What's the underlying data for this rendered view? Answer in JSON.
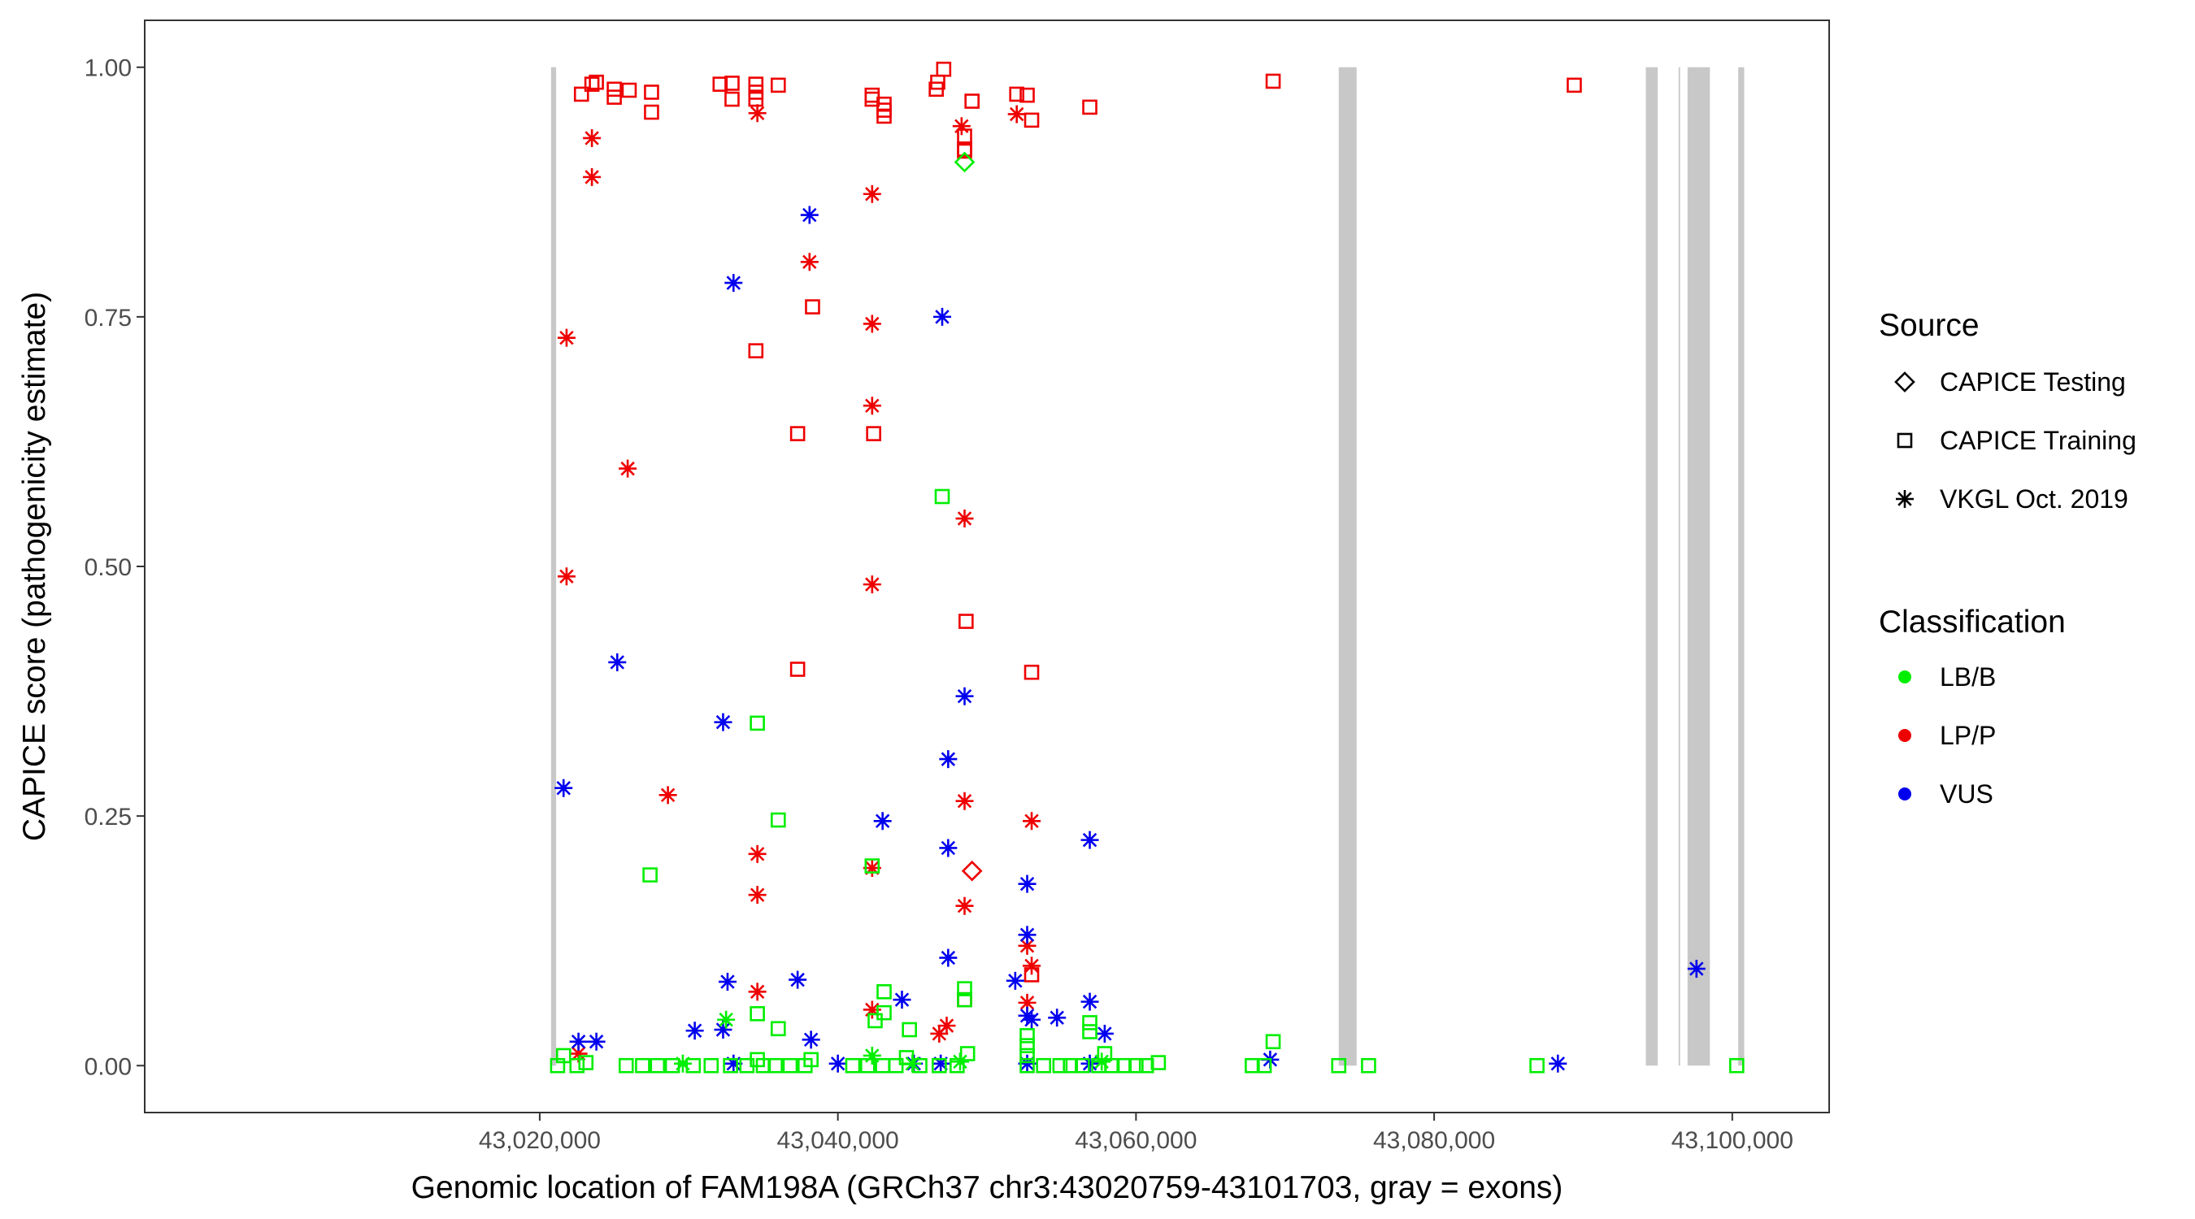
{
  "chart_data": {
    "type": "scatter",
    "title": "",
    "xlabel": "Genomic location of FAM198A (GRCh37 chr3:43020759-43101703, gray = exons)",
    "ylabel": "CAPICE score (pathogenicity estimate)",
    "xlim": [
      42993500,
      43106500
    ],
    "ylim": [
      -0.047,
      1.047
    ],
    "x_ticks": [
      43020000,
      43040000,
      43060000,
      43080000,
      43100000
    ],
    "x_tick_labels": [
      "43,020,000",
      "43,040,000",
      "43,060,000",
      "43,080,000",
      "43,100,000"
    ],
    "y_ticks": [
      0,
      0.25,
      0.5,
      0.75,
      1.0
    ],
    "y_tick_labels": [
      "0.00",
      "0.25",
      "0.50",
      "0.75",
      "1.00"
    ],
    "grid": false,
    "exons": [
      [
        43020759,
        43021100
      ],
      [
        43073600,
        43074800
      ],
      [
        43094200,
        43095000
      ],
      [
        43096400,
        43096500
      ],
      [
        43097000,
        43098500
      ],
      [
        43100400,
        43100800
      ]
    ],
    "legend_position": "right",
    "legend": {
      "source_title": "Source",
      "source_items": [
        {
          "label": "CAPICE Testing",
          "shape": "diamond"
        },
        {
          "label": "CAPICE Training",
          "shape": "square"
        },
        {
          "label": "VKGL Oct. 2019",
          "shape": "asterisk"
        }
      ],
      "class_title": "Classification",
      "class_items": [
        {
          "label": "LB/B",
          "color": "#00ee00"
        },
        {
          "label": "LP/P",
          "color": "#ee0000"
        },
        {
          "label": "VUS",
          "color": "#0000ee"
        }
      ]
    },
    "colors": {
      "LB/B": "#00ee00",
      "LP/P": "#ee0000",
      "VUS": "#0000ee",
      "exon": "#c8c8c8"
    },
    "series": [
      {
        "name": "CAPICE Training",
        "class": "LP/P",
        "shape": "square",
        "x": [
          43022800,
          43023500,
          43023800,
          43025000,
          43025000,
          43026000,
          43027500,
          43027500,
          43032100,
          43032900,
          43032900,
          43034500,
          43034500,
          43034500,
          43036000,
          43042300,
          43042300,
          43043100,
          43043100,
          43043100,
          43046600,
          43046700,
          43047100,
          43048500,
          43048500,
          43048500,
          43049000,
          43052000,
          43052700,
          43053000,
          43056900,
          43069200,
          43089400,
          43034500,
          43037300,
          43038300,
          43042400,
          43048600,
          43037300,
          43053000,
          43048500,
          43053000
        ],
        "y": [
          0.973,
          0.983,
          0.985,
          0.97,
          0.978,
          0.977,
          0.975,
          0.955,
          0.983,
          0.984,
          0.968,
          0.983,
          0.975,
          0.968,
          0.982,
          0.972,
          0.968,
          0.963,
          0.957,
          0.951,
          0.978,
          0.985,
          0.998,
          0.931,
          0.916,
          0.918,
          0.966,
          0.973,
          0.972,
          0.947,
          0.96,
          0.986,
          0.982,
          0.716,
          0.633,
          0.76,
          0.633,
          0.445,
          0.397,
          0.394,
          0.066,
          0.091
        ]
      },
      {
        "name": "VKGL Oct. 2019",
        "class": "LP/P",
        "shape": "asterisk",
        "x": [
          43023500,
          43023500,
          43021800,
          43021800,
          43025900,
          43028600,
          43034600,
          43034600,
          43034600,
          43034600,
          43038100,
          43042300,
          43042300,
          43042300,
          43042300,
          43042300,
          43042300,
          43048300,
          43048500,
          43048500,
          43048500,
          43052000,
          43052700,
          43053000,
          43053000,
          43052700,
          43046800,
          43047300,
          43022600
        ],
        "y": [
          0.929,
          0.89,
          0.729,
          0.49,
          0.598,
          0.271,
          0.954,
          0.212,
          0.171,
          0.074,
          0.805,
          0.873,
          0.743,
          0.661,
          0.482,
          0.198,
          0.056,
          0.941,
          0.548,
          0.265,
          0.16,
          0.953,
          0.063,
          0.245,
          0.1,
          0.12,
          0.032,
          0.04,
          0.012
        ]
      },
      {
        "name": "CAPICE Testing",
        "class": "LP/P",
        "shape": "diamond",
        "x": [
          43049000
        ],
        "y": [
          0.195
        ]
      },
      {
        "name": "CAPICE Testing",
        "class": "LB/B",
        "shape": "diamond",
        "x": [
          43048500
        ],
        "y": [
          0.905
        ]
      },
      {
        "name": "VKGL Oct. 2019",
        "class": "VUS",
        "shape": "asterisk",
        "x": [
          43038100,
          43033000,
          43047000,
          43021600,
          43025200,
          43032300,
          43043000,
          43047400,
          43048500,
          43047400,
          43056900,
          43052700,
          43052700,
          43047400,
          43032600,
          43037300,
          43056900,
          43044300,
          43051900,
          43052700,
          43053000,
          43054700,
          43030400,
          43032300,
          43038200,
          43057900,
          43022600,
          43023800,
          43033000,
          43040000,
          43045100,
          43046900,
          43052700,
          43056900,
          43069000,
          43088300,
          43097600
        ],
        "y": [
          0.852,
          0.784,
          0.75,
          0.278,
          0.404,
          0.344,
          0.245,
          0.307,
          0.37,
          0.218,
          0.226,
          0.182,
          0.131,
          0.108,
          0.084,
          0.086,
          0.064,
          0.066,
          0.085,
          0.05,
          0.046,
          0.048,
          0.035,
          0.036,
          0.026,
          0.032,
          0.024,
          0.024,
          0.002,
          0.002,
          0.002,
          0.002,
          0.002,
          0.002,
          0.006,
          0.002,
          0.097
        ]
      },
      {
        "name": "CAPICE Training",
        "class": "LB/B",
        "shape": "square",
        "x": [
          43047000,
          43034600,
          43036000,
          43027400,
          43042300,
          43034600,
          43036000,
          43042500,
          43043100,
          43043100,
          43044800,
          43048500,
          43048500,
          43052700,
          43052700,
          43052700,
          43056900,
          43056900,
          43057900,
          43069200,
          43021200,
          43021600,
          43022500,
          43023100,
          43025800,
          43026900,
          43027900,
          43028900,
          43030300,
          43031500,
          43032800,
          43033900,
          43034600,
          43035000,
          43035800,
          43036800,
          43037800,
          43038200,
          43041000,
          43042000,
          43043000,
          43043900,
          43044600,
          43045500,
          43046800,
          43048000,
          43048700,
          43052700,
          43053800,
          43054900,
          43055600,
          43056400,
          43057500,
          43058400,
          43059200,
          43060000,
          43060700,
          43061500,
          43067800,
          43068600,
          43073600,
          43075600,
          43086900,
          43100300
        ],
        "y": [
          0.57,
          0.343,
          0.246,
          0.191,
          0.2,
          0.052,
          0.037,
          0.045,
          0.074,
          0.053,
          0.036,
          0.077,
          0.066,
          0.03,
          0.02,
          0.01,
          0.043,
          0.034,
          0.012,
          0.024,
          0.0,
          0.01,
          0.0,
          0.003,
          0.0,
          0.0,
          0.0,
          0.0,
          0.0,
          0.0,
          0.0,
          0.0,
          0.006,
          0.0,
          0.0,
          0.0,
          0.0,
          0.006,
          0.0,
          0.0,
          0.0,
          0.0,
          0.008,
          0.0,
          0.0,
          0.0,
          0.012,
          0.0,
          0.0,
          0.0,
          0.0,
          0.0,
          0.0,
          0.0,
          0.0,
          0.0,
          0.0,
          0.003,
          0.0,
          0.0,
          0.0,
          0.0,
          0.0,
          0.0
        ]
      },
      {
        "name": "VKGL Oct. 2019",
        "class": "LB/B",
        "shape": "asterisk",
        "x": [
          43032500,
          43029600,
          43042300,
          43045000,
          43048200,
          43057700
        ],
        "y": [
          0.046,
          0.002,
          0.01,
          0.002,
          0.004,
          0.004
        ]
      }
    ]
  }
}
